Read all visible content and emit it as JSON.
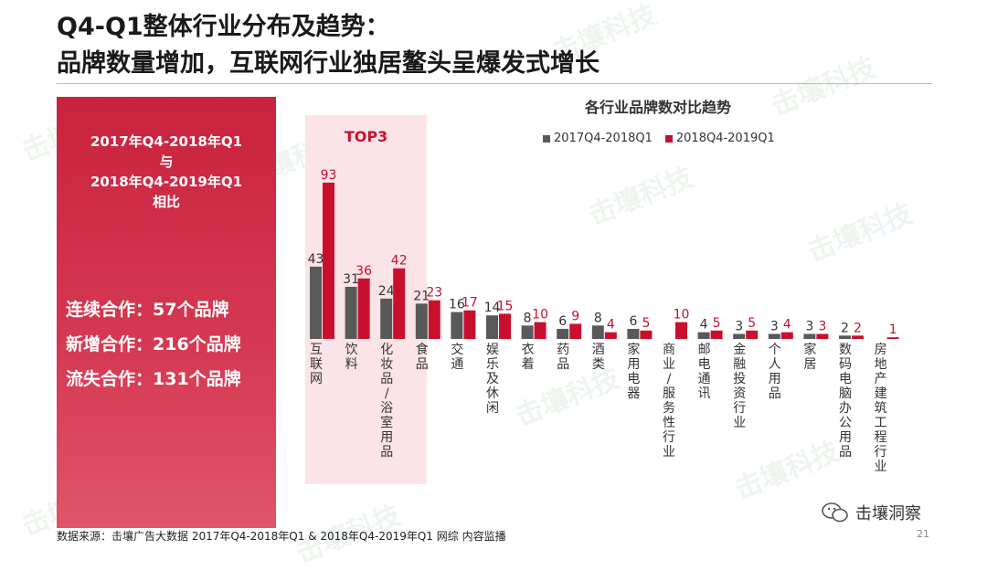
{
  "title": {
    "line1": "Q4-Q1整体行业分布及趋势：",
    "line2": "品牌数量增加，互联网行业独居鳌头呈爆发式增长"
  },
  "left_panel": {
    "compare_lines": [
      "2017年Q4-2018年Q1",
      "与",
      "2018年Q4-2019年Q1",
      "相比"
    ],
    "stats": [
      "连续合作：57个品牌",
      "新增合作：216个品牌",
      "流失合作：131个品牌"
    ]
  },
  "watermark_text": "击壤科技",
  "top3_label": "TOP3",
  "chart_data": {
    "type": "bar",
    "title": "各行业品牌数对比趋势",
    "categories": [
      "互联网",
      "饮料",
      "化妆品/浴室用品",
      "食品",
      "交通",
      "娱乐及休闲",
      "衣着",
      "药品",
      "酒类",
      "家用电器",
      "商业/服务性行业",
      "邮电通讯",
      "金融投资行业",
      "个人用品",
      "家居",
      "数码电脑办公用品",
      "房地产建筑工程行业"
    ],
    "series": [
      {
        "name": "2017Q4-2018Q1",
        "color": "#595959",
        "values": [
          43,
          31,
          24,
          21,
          16,
          14,
          8,
          6,
          8,
          6,
          null,
          4,
          3,
          3,
          3,
          2,
          null
        ]
      },
      {
        "name": "2018Q4-2019Q1",
        "color": "#c8102e",
        "values": [
          93,
          36,
          42,
          23,
          17,
          15,
          10,
          9,
          4,
          5,
          10,
          5,
          5,
          4,
          3,
          2,
          1
        ]
      }
    ],
    "ylim": [
      0,
      100
    ],
    "grid": false,
    "legend_position": "top"
  },
  "footer": {
    "source": "数据来源：击壤广告大数据 2017年Q4-2018年Q1 & 2018年Q4-2019年Q1 网综 内容监播",
    "brand": "击壤洞察",
    "page": "21"
  }
}
